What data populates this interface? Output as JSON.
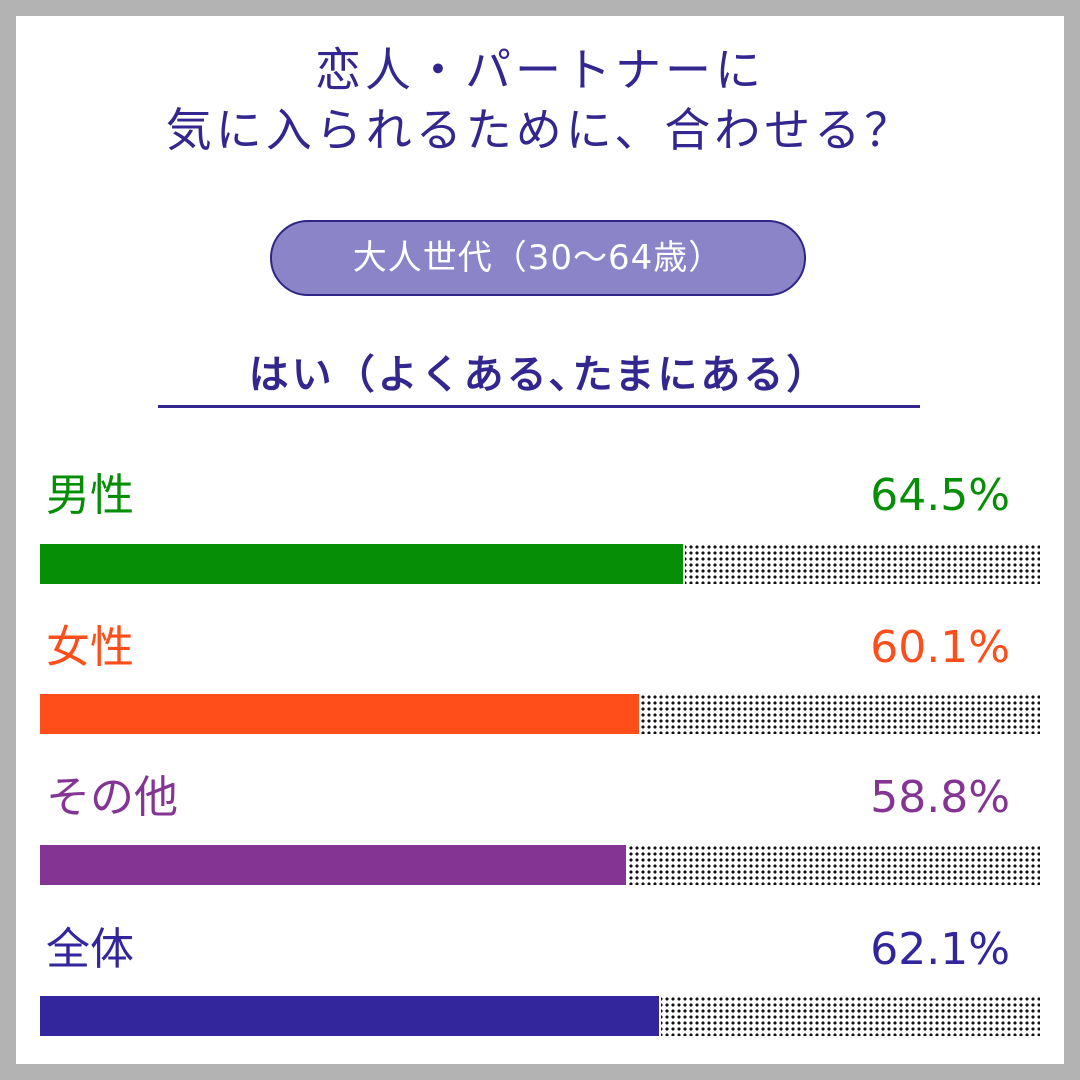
{
  "title_line1": "恋人・パートナーに",
  "title_line2": "気に入られるために、合わせる？",
  "badge": "大人世代（30～64歳）",
  "subtitle": "はい（よくある､たまにある）",
  "chart_data": {
    "type": "bar",
    "orientation": "horizontal",
    "categories": [
      "男性",
      "女性",
      "その他",
      "全体"
    ],
    "values": [
      64.5,
      60.1,
      58.8,
      62.1
    ],
    "value_labels": [
      "64.5%",
      "60.1%",
      "58.8%",
      "62.1%"
    ],
    "colors": [
      "#068f06",
      "#ff4e1a",
      "#843593",
      "#33259c"
    ],
    "title": "はい（よくある､たまにある）",
    "xlim": [
      0,
      100
    ],
    "unit": "%",
    "grid": false,
    "legend": "none"
  }
}
